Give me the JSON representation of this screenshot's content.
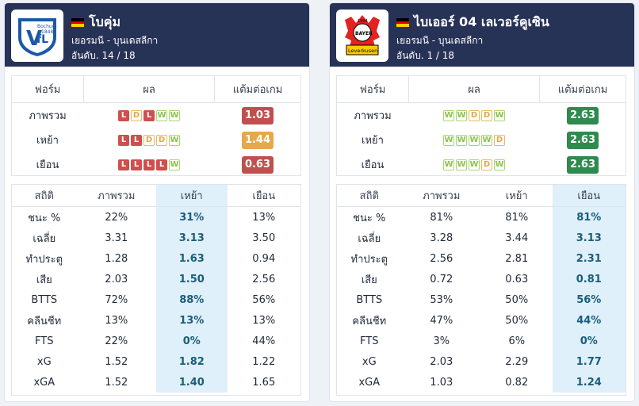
{
  "colors": {
    "header_bg": "#273257",
    "highlight_bg": "#dff0fb",
    "ppg_red": "#c0504d",
    "ppg_orange": "#e5a84c",
    "ppg_green": "#2e8a4f"
  },
  "labels": {
    "form": "ฟอร์ม",
    "result": "ผล",
    "ppg": "แต้มต่อเกม",
    "overall": "ภาพรวม",
    "home": "เหย้า",
    "away": "เยือน",
    "stat": "สถิติ"
  },
  "teams": [
    {
      "name": "โบคุ่ม",
      "league": "เยอรมนี - บุนเดสลีกา",
      "rank": "อันดับ. 14 / 18",
      "logo_icon": "vfl-bochum-logo",
      "logo_text": "VfL Bochum 1848",
      "highlight_col": "home",
      "form": [
        {
          "label": "ภาพรวม",
          "results": [
            "L",
            "D",
            "L",
            "W",
            "W"
          ],
          "ppg": "1.03",
          "color": "#c0504d"
        },
        {
          "label": "เหย้า",
          "results": [
            "L",
            "L",
            "D",
            "D",
            "W"
          ],
          "ppg": "1.44",
          "color": "#e5a84c"
        },
        {
          "label": "เยือน",
          "results": [
            "L",
            "L",
            "L",
            "L",
            "W"
          ],
          "ppg": "0.63",
          "color": "#c0504d"
        }
      ],
      "stats": [
        {
          "label": "ชนะ %",
          "overall": "22%",
          "home": "31%",
          "away": "13%"
        },
        {
          "label": "เฉลี่ย",
          "overall": "3.31",
          "home": "3.13",
          "away": "3.50"
        },
        {
          "label": "ทำประตู",
          "overall": "1.28",
          "home": "1.63",
          "away": "0.94"
        },
        {
          "label": "เสีย",
          "overall": "2.03",
          "home": "1.50",
          "away": "2.56"
        },
        {
          "label": "BTTS",
          "overall": "72%",
          "home": "88%",
          "away": "56%"
        },
        {
          "label": "คลีนชีท",
          "overall": "13%",
          "home": "13%",
          "away": "13%"
        },
        {
          "label": "FTS",
          "overall": "22%",
          "home": "0%",
          "away": "44%"
        },
        {
          "label": "xG",
          "overall": "1.52",
          "home": "1.82",
          "away": "1.22"
        },
        {
          "label": "xGA",
          "overall": "1.52",
          "home": "1.40",
          "away": "1.65"
        }
      ]
    },
    {
      "name": "ไบเออร์ 04 เลเวอร์คูเซิน",
      "league": "เยอรมนี - บุนเดสลีกา",
      "rank": "อันดับ. 1 / 18",
      "logo_icon": "bayer-leverkusen-logo",
      "logo_text": "1904 BAYER Leverkusen",
      "highlight_col": "away",
      "form": [
        {
          "label": "ภาพรวม",
          "results": [
            "W",
            "W",
            "D",
            "D",
            "W"
          ],
          "ppg": "2.63",
          "color": "#2e8a4f"
        },
        {
          "label": "เหย้า",
          "results": [
            "W",
            "W",
            "W",
            "W",
            "D"
          ],
          "ppg": "2.63",
          "color": "#2e8a4f"
        },
        {
          "label": "เยือน",
          "results": [
            "W",
            "W",
            "W",
            "D",
            "W"
          ],
          "ppg": "2.63",
          "color": "#2e8a4f"
        }
      ],
      "stats": [
        {
          "label": "ชนะ %",
          "overall": "81%",
          "home": "81%",
          "away": "81%"
        },
        {
          "label": "เฉลี่ย",
          "overall": "3.28",
          "home": "3.44",
          "away": "3.13"
        },
        {
          "label": "ทำประตู",
          "overall": "2.56",
          "home": "2.81",
          "away": "2.31"
        },
        {
          "label": "เสีย",
          "overall": "0.72",
          "home": "0.63",
          "away": "0.81"
        },
        {
          "label": "BTTS",
          "overall": "53%",
          "home": "50%",
          "away": "56%"
        },
        {
          "label": "คลีนชีท",
          "overall": "47%",
          "home": "50%",
          "away": "44%"
        },
        {
          "label": "FTS",
          "overall": "3%",
          "home": "6%",
          "away": "0%"
        },
        {
          "label": "xG",
          "overall": "2.03",
          "home": "2.29",
          "away": "1.77"
        },
        {
          "label": "xGA",
          "overall": "1.03",
          "home": "0.82",
          "away": "1.24"
        }
      ]
    }
  ]
}
